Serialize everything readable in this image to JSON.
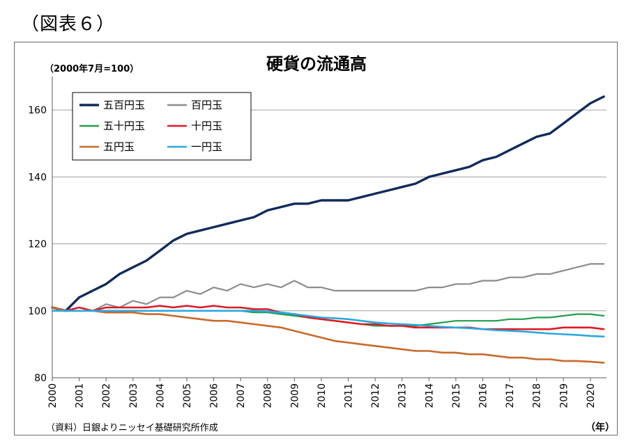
{
  "figure_label": "（図表６）",
  "source_note": "（資料）日銀よりニッセイ基礎研究所作成",
  "x_unit": "（年）",
  "colors": {
    "五百円玉": "#102a5c",
    "百円玉": "#8c8c8c",
    "五十円玉": "#1f9e4a",
    "十円玉": "#e01b24",
    "五円玉": "#c9692a",
    "一円玉": "#27a9e1",
    "grid": "#a0a0a0"
  },
  "chart_data": {
    "type": "line",
    "title": "硬貨の流通高",
    "ylabel": "（2000年7月=100）",
    "xlabel": "",
    "xlim": [
      2000,
      2020.6
    ],
    "ylim": [
      80,
      170
    ],
    "yticks": [
      80,
      100,
      120,
      140,
      160
    ],
    "xticks": [
      "2000",
      "2001",
      "2002",
      "2003",
      "2004",
      "2005",
      "2006",
      "2007",
      "2008",
      "2009",
      "2010",
      "2011",
      "2012",
      "2013",
      "2014",
      "2015",
      "2016",
      "2017",
      "2018",
      "2019",
      "2020"
    ],
    "grid": true,
    "legend": "top-left",
    "series": [
      {
        "name": "五百円玉",
        "width": 3.4,
        "x": [
          2000.0,
          2000.5,
          2001.0,
          2001.5,
          2002.0,
          2002.5,
          2003.0,
          2003.5,
          2004.0,
          2004.5,
          2005.0,
          2005.5,
          2006.0,
          2006.5,
          2007.0,
          2007.5,
          2008.0,
          2008.5,
          2009.0,
          2009.5,
          2010.0,
          2010.5,
          2011.0,
          2011.5,
          2012.0,
          2012.5,
          2013.0,
          2013.5,
          2014.0,
          2014.5,
          2015.0,
          2015.5,
          2016.0,
          2016.5,
          2017.0,
          2017.5,
          2018.0,
          2018.5,
          2019.0,
          2019.5,
          2020.0,
          2020.5
        ],
        "y": [
          101,
          100,
          104,
          106,
          108,
          111,
          113,
          115,
          118,
          121,
          123,
          124,
          125,
          126,
          127,
          128,
          130,
          131,
          132,
          132,
          133,
          133,
          133,
          134,
          135,
          136,
          137,
          138,
          140,
          141,
          142,
          143,
          145,
          146,
          148,
          150,
          152,
          153,
          156,
          159,
          162,
          164
        ]
      },
      {
        "name": "百円玉",
        "width": 2.2,
        "x": [
          2000.0,
          2000.5,
          2001.0,
          2001.5,
          2002.0,
          2002.5,
          2003.0,
          2003.5,
          2004.0,
          2004.5,
          2005.0,
          2005.5,
          2006.0,
          2006.5,
          2007.0,
          2007.5,
          2008.0,
          2008.5,
          2009.0,
          2009.5,
          2010.0,
          2010.5,
          2011.0,
          2011.5,
          2012.0,
          2012.5,
          2013.0,
          2013.5,
          2014.0,
          2014.5,
          2015.0,
          2015.5,
          2016.0,
          2016.5,
          2017.0,
          2017.5,
          2018.0,
          2018.5,
          2019.0,
          2019.5,
          2020.0,
          2020.5
        ],
        "y": [
          101,
          100,
          101,
          100,
          102,
          101,
          103,
          102,
          104,
          104,
          106,
          105,
          107,
          106,
          108,
          107,
          108,
          107,
          109,
          107,
          107,
          106,
          106,
          106,
          106,
          106,
          106,
          106,
          107,
          107,
          108,
          108,
          109,
          109,
          110,
          110,
          111,
          111,
          112,
          113,
          114,
          114
        ]
      },
      {
        "name": "五十円玉",
        "width": 2.2,
        "x": [
          2000.0,
          2000.5,
          2001.0,
          2001.5,
          2002.0,
          2002.5,
          2003.0,
          2003.5,
          2004.0,
          2004.5,
          2005.0,
          2005.5,
          2006.0,
          2006.5,
          2007.0,
          2007.5,
          2008.0,
          2008.5,
          2009.0,
          2009.5,
          2010.0,
          2010.5,
          2011.0,
          2011.5,
          2012.0,
          2012.5,
          2013.0,
          2013.5,
          2014.0,
          2014.5,
          2015.0,
          2015.5,
          2016.0,
          2016.5,
          2017.0,
          2017.5,
          2018.0,
          2018.5,
          2019.0,
          2019.5,
          2020.0,
          2020.5
        ],
        "y": [
          101,
          100,
          100,
          100,
          100,
          100,
          100,
          100,
          100,
          100,
          100,
          100,
          100,
          100,
          100,
          99.5,
          99.5,
          99,
          98.5,
          98,
          97.5,
          97,
          96.5,
          96,
          95.5,
          95.5,
          95.5,
          95.5,
          96,
          96.5,
          97,
          97,
          97,
          97,
          97.5,
          97.5,
          98,
          98,
          98.5,
          99,
          99,
          98.5
        ]
      },
      {
        "name": "十円玉",
        "width": 2.6,
        "x": [
          2000.0,
          2000.5,
          2001.0,
          2001.5,
          2002.0,
          2002.5,
          2003.0,
          2003.5,
          2004.0,
          2004.5,
          2005.0,
          2005.5,
          2006.0,
          2006.5,
          2007.0,
          2007.5,
          2008.0,
          2008.5,
          2009.0,
          2009.5,
          2010.0,
          2010.5,
          2011.0,
          2011.5,
          2012.0,
          2012.5,
          2013.0,
          2013.5,
          2014.0,
          2014.5,
          2015.0,
          2015.5,
          2016.0,
          2016.5,
          2017.0,
          2017.5,
          2018.0,
          2018.5,
          2019.0,
          2019.5,
          2020.0,
          2020.5
        ],
        "y": [
          101,
          100,
          101,
          100,
          101,
          101,
          101,
          101,
          101.5,
          101,
          101.5,
          101,
          101.5,
          101,
          101,
          100.5,
          100.5,
          99.5,
          99,
          98,
          97.5,
          97,
          96.5,
          96,
          96,
          95.5,
          95.5,
          95,
          95,
          95,
          95,
          95,
          94.5,
          94.5,
          94.5,
          94.5,
          94.5,
          94.5,
          95,
          95,
          95,
          94.5
        ]
      },
      {
        "name": "五円玉",
        "width": 2.6,
        "x": [
          2000.0,
          2000.5,
          2001.0,
          2001.5,
          2002.0,
          2002.5,
          2003.0,
          2003.5,
          2004.0,
          2004.5,
          2005.0,
          2005.5,
          2006.0,
          2006.5,
          2007.0,
          2007.5,
          2008.0,
          2008.5,
          2009.0,
          2009.5,
          2010.0,
          2010.5,
          2011.0,
          2011.5,
          2012.0,
          2012.5,
          2013.0,
          2013.5,
          2014.0,
          2014.5,
          2015.0,
          2015.5,
          2016.0,
          2016.5,
          2017.0,
          2017.5,
          2018.0,
          2018.5,
          2019.0,
          2019.5,
          2020.0,
          2020.5
        ],
        "y": [
          101,
          100,
          100,
          100,
          99.5,
          99.5,
          99.5,
          99,
          99,
          98.5,
          98,
          97.5,
          97,
          97,
          96.5,
          96,
          95.5,
          95,
          94,
          93,
          92,
          91,
          90.5,
          90,
          89.5,
          89,
          88.5,
          88,
          88,
          87.5,
          87.5,
          87,
          87,
          86.5,
          86,
          86,
          85.5,
          85.5,
          85,
          85,
          84.8,
          84.5
        ]
      },
      {
        "name": "一円玉",
        "width": 2.6,
        "x": [
          2000.0,
          2000.5,
          2001.0,
          2001.5,
          2002.0,
          2002.5,
          2003.0,
          2003.5,
          2004.0,
          2004.5,
          2005.0,
          2005.5,
          2006.0,
          2006.5,
          2007.0,
          2007.5,
          2008.0,
          2008.5,
          2009.0,
          2009.5,
          2010.0,
          2010.5,
          2011.0,
          2011.5,
          2012.0,
          2012.5,
          2013.0,
          2013.5,
          2014.0,
          2014.5,
          2015.0,
          2015.5,
          2016.0,
          2016.5,
          2017.0,
          2017.5,
          2018.0,
          2018.5,
          2019.0,
          2019.5,
          2020.0,
          2020.5
        ],
        "y": [
          100,
          100,
          100,
          100,
          100,
          100,
          100,
          100,
          100,
          100,
          100,
          100,
          100,
          100,
          100,
          100,
          99.8,
          99.5,
          99,
          98.5,
          98,
          97.8,
          97.5,
          97,
          96.5,
          96.2,
          96,
          95.8,
          95.5,
          95.2,
          95,
          94.8,
          94.5,
          94.2,
          94,
          93.8,
          93.5,
          93.2,
          93,
          92.8,
          92.5,
          92.3
        ]
      }
    ]
  }
}
